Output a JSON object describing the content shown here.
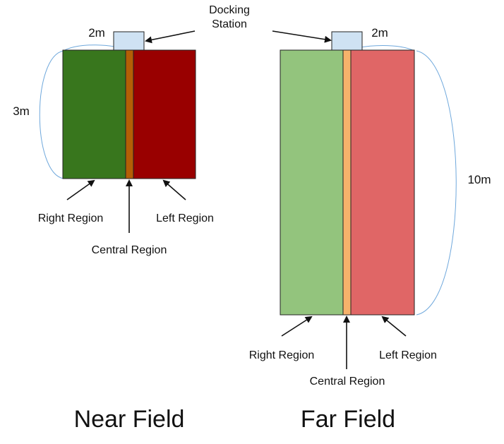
{
  "docking_station": {
    "label_line1": "Docking",
    "label_line2": "Station"
  },
  "near_field": {
    "title": "Near Field",
    "width_label": "2m",
    "length_label": "3m",
    "right_region": "Right Region",
    "central_region": "Central Region",
    "left_region": "Left Region",
    "colors": {
      "right": "#38761d",
      "central": "#b45f06",
      "left": "#990000"
    }
  },
  "far_field": {
    "title": "Far Field",
    "width_label": "2m",
    "length_label": "10m",
    "right_region": "Right Region",
    "central_region": "Central Region",
    "left_region": "Left Region",
    "colors": {
      "right": "#93c47d",
      "central": "#f6b26b",
      "left": "#e06666"
    }
  },
  "colors": {
    "station": "#cfe2f3",
    "dimension_curve": "#6fa8dc",
    "outline": "#222222"
  }
}
